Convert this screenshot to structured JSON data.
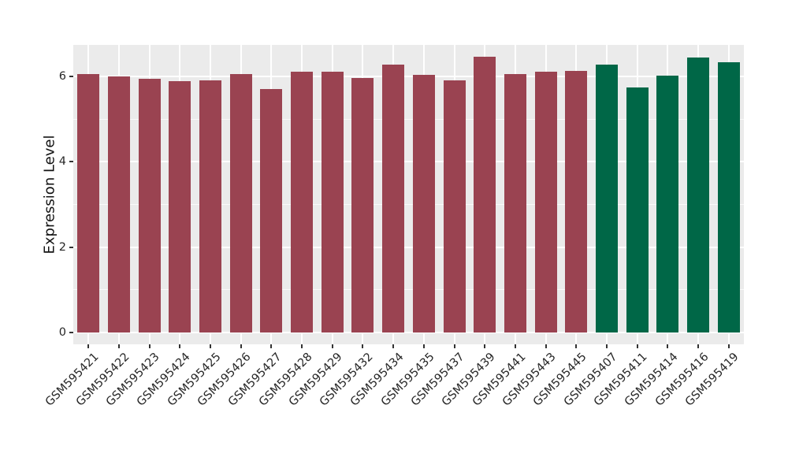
{
  "chart_data": {
    "type": "bar",
    "title": "",
    "ylabel": "Expression Level",
    "xlabel": "",
    "categories": [
      "GSM595421",
      "GSM595422",
      "GSM595423",
      "GSM595424",
      "GSM595425",
      "GSM595426",
      "GSM595427",
      "GSM595428",
      "GSM595429",
      "GSM595432",
      "GSM595434",
      "GSM595435",
      "GSM595437",
      "GSM595439",
      "GSM595441",
      "GSM595443",
      "GSM595445",
      "GSM595407",
      "GSM595411",
      "GSM595414",
      "GSM595416",
      "GSM595419"
    ],
    "values": [
      6.05,
      6.0,
      5.95,
      5.88,
      5.91,
      6.05,
      5.71,
      6.11,
      6.11,
      5.96,
      6.27,
      6.03,
      5.9,
      6.45,
      6.05,
      6.11,
      6.12,
      6.27,
      5.74,
      6.01,
      6.44,
      6.32
    ],
    "bar_colors": [
      "#9A4351",
      "#9A4351",
      "#9A4351",
      "#9A4351",
      "#9A4351",
      "#9A4351",
      "#9A4351",
      "#9A4351",
      "#9A4351",
      "#9A4351",
      "#9A4351",
      "#9A4351",
      "#9A4351",
      "#9A4351",
      "#9A4351",
      "#9A4351",
      "#9A4351",
      "#006747",
      "#006747",
      "#006747",
      "#006747",
      "#006747"
    ],
    "group_colors": {
      "left_group": "#9A4351",
      "right_group": "#006747"
    },
    "yticks": [
      0,
      2,
      4,
      6
    ],
    "ytick_labels": [
      "0",
      "2",
      "4",
      "6"
    ],
    "minor_grid_values": [
      1,
      3,
      5
    ],
    "ylim": [
      -0.28,
      6.74
    ],
    "legend": "none",
    "grid": "on",
    "panel_background": "#EBEBEB",
    "figure_background": "#FFFFFF"
  }
}
